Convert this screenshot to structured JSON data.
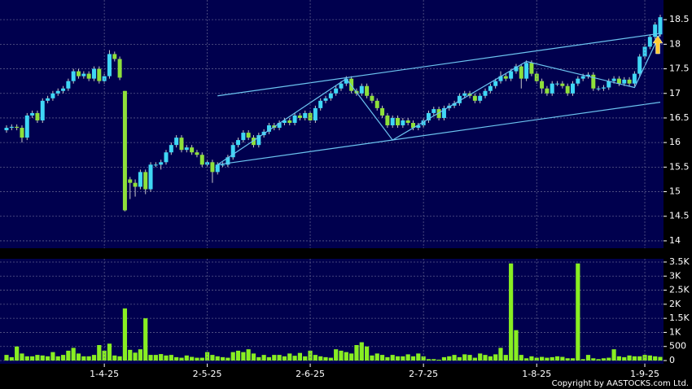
{
  "chart_data": [
    {
      "type": "candlestick",
      "open": [
        16.25,
        16.3,
        16.32,
        16.3,
        16.1,
        16.55,
        16.6,
        16.45,
        16.85,
        16.9,
        17.0,
        17.05,
        17.1,
        17.25,
        17.45,
        17.35,
        17.4,
        17.3,
        17.5,
        17.25,
        17.35,
        17.8,
        17.7,
        17.05,
        15.25,
        15.18,
        15.1,
        15.4,
        15.05,
        15.55,
        15.55,
        15.6,
        15.8,
        15.95,
        16.1,
        15.85,
        15.9,
        15.8,
        15.75,
        15.55,
        15.6,
        15.4,
        15.55,
        15.55,
        15.7,
        15.95,
        16.05,
        16.2,
        16.1,
        15.95,
        16.15,
        16.22,
        16.35,
        16.3,
        16.4,
        16.45,
        16.4,
        16.55,
        16.5,
        16.6,
        16.45,
        16.7,
        16.85,
        16.9,
        17.0,
        17.1,
        17.2,
        17.3,
        17.05,
        17.0,
        17.15,
        16.95,
        16.85,
        16.7,
        16.55,
        16.35,
        16.5,
        16.35,
        16.45,
        16.4,
        16.3,
        16.35,
        16.45,
        16.6,
        16.68,
        16.5,
        16.7,
        16.75,
        16.8,
        16.95,
        17.0,
        16.95,
        16.85,
        16.95,
        17.05,
        17.15,
        17.25,
        17.35,
        17.3,
        17.45,
        17.55,
        17.3,
        17.62,
        17.4,
        17.25,
        17.1,
        17.0,
        17.2,
        17.2,
        17.15,
        17.0,
        17.2,
        17.3,
        17.35,
        17.38,
        17.1,
        17.1,
        17.12,
        17.25,
        17.3,
        17.2,
        17.28,
        17.2,
        17.4,
        17.75,
        17.95,
        18.15,
        18.2
      ],
      "high": [
        16.35,
        16.37,
        16.37,
        16.35,
        16.6,
        16.65,
        16.65,
        16.9,
        16.95,
        17.05,
        17.1,
        17.15,
        17.3,
        17.5,
        17.5,
        17.45,
        17.45,
        17.55,
        17.55,
        17.4,
        17.88,
        17.85,
        17.75,
        17.05,
        15.3,
        15.25,
        15.45,
        15.45,
        15.6,
        15.6,
        15.65,
        15.85,
        16.0,
        16.15,
        16.15,
        15.95,
        15.95,
        15.85,
        15.8,
        15.65,
        15.65,
        15.6,
        15.6,
        15.75,
        16.0,
        16.1,
        16.25,
        16.25,
        16.15,
        16.2,
        16.27,
        16.4,
        16.4,
        16.45,
        16.5,
        16.5,
        16.6,
        16.6,
        16.65,
        16.65,
        16.75,
        16.9,
        16.95,
        17.05,
        17.15,
        17.25,
        17.35,
        17.35,
        17.1,
        17.2,
        17.2,
        17.0,
        16.9,
        16.75,
        16.6,
        16.55,
        16.55,
        16.5,
        16.5,
        16.45,
        16.4,
        16.5,
        16.65,
        16.73,
        16.73,
        16.75,
        16.8,
        16.85,
        17.0,
        17.05,
        17.05,
        17.0,
        17.0,
        17.1,
        17.2,
        17.3,
        17.45,
        17.4,
        17.5,
        17.6,
        17.6,
        17.67,
        17.67,
        17.45,
        17.3,
        17.15,
        17.25,
        17.25,
        17.25,
        17.2,
        17.25,
        17.35,
        17.4,
        17.43,
        17.43,
        17.15,
        17.17,
        17.3,
        17.35,
        17.35,
        17.33,
        17.33,
        17.45,
        17.8,
        18.0,
        18.2,
        18.45,
        18.6
      ],
      "low": [
        16.2,
        16.25,
        16.25,
        16.0,
        16.05,
        16.5,
        16.4,
        16.4,
        16.8,
        16.85,
        16.95,
        17.0,
        17.05,
        17.2,
        17.3,
        17.3,
        17.25,
        17.25,
        17.2,
        17.2,
        17.3,
        17.65,
        17.27,
        14.6,
        14.85,
        14.9,
        15.05,
        14.95,
        15.0,
        15.5,
        15.45,
        15.55,
        15.75,
        15.9,
        15.8,
        15.8,
        15.75,
        15.7,
        15.5,
        15.5,
        15.18,
        15.35,
        15.5,
        15.5,
        15.65,
        15.9,
        16.0,
        16.05,
        15.9,
        15.9,
        16.1,
        16.17,
        16.25,
        16.25,
        16.35,
        16.35,
        16.35,
        16.45,
        16.45,
        16.4,
        16.4,
        16.65,
        16.8,
        16.85,
        16.95,
        17.05,
        17.15,
        17.0,
        16.95,
        16.95,
        16.9,
        16.8,
        16.65,
        16.5,
        16.3,
        16.3,
        16.3,
        16.3,
        16.35,
        16.25,
        16.25,
        16.3,
        16.4,
        16.55,
        16.45,
        16.45,
        16.65,
        16.7,
        16.75,
        16.9,
        16.9,
        16.8,
        16.8,
        16.9,
        17.0,
        17.1,
        17.2,
        17.25,
        17.25,
        17.4,
        17.1,
        17.25,
        17.35,
        17.2,
        17.0,
        16.95,
        16.95,
        17.15,
        17.1,
        16.95,
        16.95,
        17.15,
        17.25,
        17.3,
        17.05,
        17.05,
        17.05,
        17.07,
        17.2,
        17.15,
        17.15,
        17.15,
        17.15,
        17.35,
        17.7,
        17.9,
        18.1,
        18.15
      ],
      "close": [
        16.3,
        16.32,
        16.3,
        16.1,
        16.55,
        16.6,
        16.45,
        16.85,
        16.9,
        17.0,
        17.05,
        17.1,
        17.25,
        17.45,
        17.35,
        17.4,
        17.3,
        17.5,
        17.25,
        17.35,
        17.8,
        17.7,
        17.32,
        14.62,
        15.18,
        15.1,
        15.4,
        15.05,
        15.55,
        15.55,
        15.6,
        15.8,
        15.95,
        16.1,
        15.85,
        15.9,
        15.8,
        15.75,
        15.55,
        15.6,
        15.4,
        15.55,
        15.55,
        15.7,
        15.95,
        16.05,
        16.2,
        16.1,
        15.95,
        16.15,
        16.22,
        16.35,
        16.3,
        16.4,
        16.45,
        16.4,
        16.55,
        16.5,
        16.6,
        16.45,
        16.7,
        16.85,
        16.9,
        17.0,
        17.1,
        17.2,
        17.3,
        17.05,
        17.0,
        17.15,
        16.95,
        16.85,
        16.7,
        16.55,
        16.35,
        16.5,
        16.35,
        16.45,
        16.4,
        16.3,
        16.35,
        16.45,
        16.6,
        16.68,
        16.5,
        16.7,
        16.75,
        16.8,
        16.95,
        17.0,
        16.95,
        16.85,
        16.95,
        17.05,
        17.15,
        17.25,
        17.35,
        17.3,
        17.45,
        17.55,
        17.3,
        17.62,
        17.4,
        17.25,
        17.1,
        17.0,
        17.2,
        17.2,
        17.15,
        17.0,
        17.2,
        17.3,
        17.35,
        17.38,
        17.1,
        17.1,
        17.12,
        17.25,
        17.3,
        17.2,
        17.28,
        17.2,
        17.4,
        17.75,
        17.95,
        18.15,
        18.4,
        18.55
      ],
      "up_color": "#3fd7f5",
      "down_color": "#8ee03a",
      "trendlines": [
        {
          "x": [
            41,
            127
          ],
          "y": [
            16.95,
            18.22
          ]
        },
        {
          "x": [
            41,
            127
          ],
          "y": [
            15.55,
            16.82
          ]
        },
        {
          "x": [
            41,
            66,
            75,
            101,
            122,
            127
          ],
          "y": [
            15.55,
            17.3,
            16.05,
            17.65,
            17.12,
            18.22
          ]
        }
      ],
      "trendline_color": "#6cc4f0",
      "ylim": [
        13.85,
        18.9
      ],
      "yticks": [
        14,
        14.5,
        15,
        15.5,
        16,
        16.5,
        17,
        17.5,
        18,
        18.5
      ],
      "grid": true
    },
    {
      "type": "bar",
      "categories": [
        null,
        null,
        null,
        null,
        null,
        null,
        null,
        null,
        null,
        null,
        null,
        null,
        null,
        null,
        null,
        null,
        null,
        null,
        null,
        "1-4-25",
        null,
        null,
        null,
        null,
        null,
        null,
        null,
        null,
        null,
        null,
        null,
        null,
        null,
        null,
        null,
        null,
        null,
        null,
        null,
        "2-5-25",
        null,
        null,
        null,
        null,
        null,
        null,
        null,
        null,
        null,
        null,
        null,
        null,
        null,
        null,
        null,
        null,
        null,
        null,
        null,
        "2-6-25",
        null,
        null,
        null,
        null,
        null,
        null,
        null,
        null,
        null,
        null,
        null,
        null,
        null,
        null,
        null,
        null,
        null,
        null,
        null,
        null,
        null,
        "2-7-25",
        null,
        null,
        null,
        null,
        null,
        null,
        null,
        null,
        null,
        null,
        null,
        null,
        null,
        null,
        null,
        null,
        null,
        null,
        null,
        null,
        null,
        "1-8-25",
        null,
        null,
        null,
        null,
        null,
        null,
        null,
        null,
        null,
        null,
        null,
        null,
        null,
        null,
        null,
        null,
        null,
        null,
        null,
        null,
        "1-9-25",
        null,
        null,
        null
      ],
      "values": [
        200,
        120,
        500,
        250,
        150,
        150,
        200,
        180,
        150,
        300,
        150,
        200,
        350,
        450,
        250,
        150,
        150,
        200,
        550,
        350,
        600,
        180,
        150,
        1850,
        380,
        280,
        400,
        1500,
        200,
        200,
        230,
        180,
        200,
        120,
        100,
        180,
        130,
        100,
        100,
        300,
        200,
        150,
        120,
        100,
        300,
        350,
        300,
        400,
        250,
        120,
        200,
        120,
        200,
        200,
        150,
        250,
        170,
        270,
        150,
        350,
        200,
        150,
        120,
        100,
        400,
        350,
        300,
        250,
        550,
        650,
        500,
        180,
        250,
        200,
        120,
        200,
        150,
        150,
        220,
        150,
        250,
        150,
        50,
        50,
        30,
        120,
        150,
        200,
        120,
        220,
        200,
        100,
        250,
        200,
        150,
        220,
        450,
        200,
        3450,
        1080,
        200,
        80,
        150,
        100,
        130,
        100,
        120,
        150,
        130,
        80,
        80,
        3450,
        50,
        200,
        80,
        50,
        80,
        100,
        400,
        150,
        120,
        180,
        150,
        150,
        200,
        180,
        150,
        130
      ],
      "color": "#88ee22",
      "ylim": [
        -115,
        3615
      ],
      "yticks": [
        0,
        500,
        {
          "value": 1000,
          "label": "1K"
        },
        {
          "value": 1500,
          "label": "1.5K"
        },
        {
          "value": 2000,
          "label": "2K"
        },
        {
          "value": 2500,
          "label": "2.5K"
        },
        {
          "value": 3000,
          "label": "3K"
        },
        {
          "value": 3500,
          "label": "3.5K"
        }
      ],
      "grid": true
    }
  ],
  "copyright": "Copyright by AASTOCKS.com Ltd."
}
